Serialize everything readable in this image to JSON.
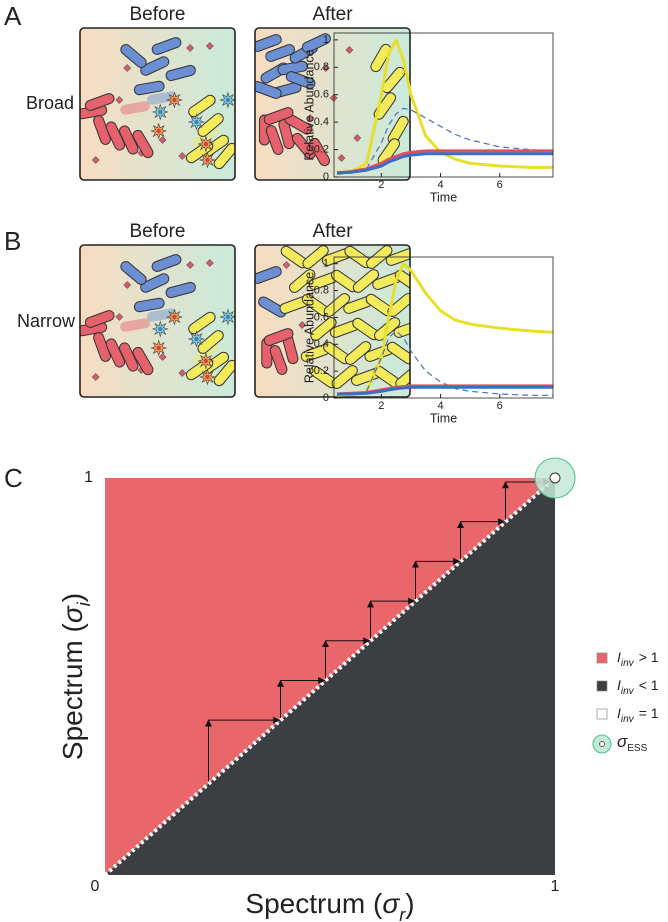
{
  "panels": [
    {
      "label": "A",
      "row_label": "Broad",
      "before": "Before",
      "after": "After"
    },
    {
      "label": "B",
      "row_label": "Narrow",
      "before": "Before",
      "after": "After"
    },
    {
      "label": "C"
    }
  ],
  "chart_data": [
    {
      "type": "line",
      "xlabel": "Time",
      "ylabel": "Relative Abundance",
      "x": [
        0.5,
        1,
        1.5,
        2,
        2.25,
        2.5,
        2.75,
        3,
        3.5,
        4,
        4.5,
        5,
        6,
        7,
        7.8
      ],
      "xlim": [
        0.4,
        7.8
      ],
      "ylim": [
        0,
        1.05
      ],
      "xticks": [
        2,
        4,
        6
      ],
      "yticks": [
        0,
        0.2,
        0.4,
        0.6,
        0.8,
        1
      ],
      "series": [
        {
          "color": "#e8df2a",
          "values": [
            0.03,
            0.04,
            0.1,
            0.6,
            0.9,
            1.0,
            0.85,
            0.6,
            0.3,
            0.18,
            0.13,
            0.1,
            0.08,
            0.07,
            0.07
          ]
        },
        {
          "color": "#4a6fc4",
          "dashed": true,
          "values": [
            0.02,
            0.03,
            0.06,
            0.25,
            0.38,
            0.46,
            0.5,
            0.49,
            0.43,
            0.37,
            0.31,
            0.27,
            0.22,
            0.2,
            0.19
          ]
        },
        {
          "color": "#e0505a",
          "values": [
            0.03,
            0.04,
            0.06,
            0.1,
            0.13,
            0.15,
            0.17,
            0.18,
            0.19,
            0.19,
            0.19,
            0.19,
            0.19,
            0.19,
            0.19
          ]
        },
        {
          "color": "#3a6cc8",
          "values": [
            0.03,
            0.035,
            0.05,
            0.08,
            0.11,
            0.13,
            0.15,
            0.16,
            0.17,
            0.17,
            0.17,
            0.17,
            0.17,
            0.17,
            0.17
          ]
        }
      ]
    },
    {
      "type": "line",
      "xlabel": "Time",
      "ylabel": "Relative Abundance",
      "x": [
        0.5,
        1,
        1.5,
        2,
        2.25,
        2.5,
        2.75,
        3,
        3.5,
        4,
        4.5,
        5,
        6,
        7,
        7.8
      ],
      "xlim": [
        0.4,
        7.8
      ],
      "ylim": [
        0,
        1.05
      ],
      "xticks": [
        2,
        4,
        6
      ],
      "yticks": [
        0,
        0.2,
        0.4,
        0.6,
        0.8,
        1
      ],
      "series": [
        {
          "color": "#e8df2a",
          "values": [
            0.02,
            0.03,
            0.05,
            0.3,
            0.6,
            0.88,
            1.0,
            0.95,
            0.78,
            0.65,
            0.58,
            0.55,
            0.52,
            0.5,
            0.49
          ]
        },
        {
          "color": "#4a6fc4",
          "dashed": true,
          "values": [
            0.02,
            0.03,
            0.05,
            0.3,
            0.45,
            0.5,
            0.45,
            0.35,
            0.2,
            0.12,
            0.07,
            0.05,
            0.03,
            0.02,
            0.02
          ]
        },
        {
          "color": "#e0505a",
          "values": [
            0.03,
            0.035,
            0.04,
            0.06,
            0.07,
            0.08,
            0.085,
            0.09,
            0.09,
            0.09,
            0.09,
            0.09,
            0.09,
            0.09,
            0.09
          ]
        },
        {
          "color": "#3a6cc8",
          "values": [
            0.03,
            0.03,
            0.035,
            0.05,
            0.06,
            0.07,
            0.075,
            0.08,
            0.08,
            0.08,
            0.08,
            0.08,
            0.08,
            0.08,
            0.08
          ]
        }
      ]
    },
    {
      "type": "invasion",
      "xlabel": {
        "text": "Spectrum (",
        "symbol": "σ",
        "sub": "r",
        "close": ")"
      },
      "ylabel": {
        "text": "Spectrum (",
        "symbol": "σ",
        "sub": "i",
        "close": ")"
      },
      "xlim": [
        0,
        1
      ],
      "ylim": [
        0,
        1
      ],
      "xticks": [
        0,
        1
      ],
      "yticks": [
        1
      ],
      "steps": [
        0.23,
        0.39,
        0.49,
        0.59,
        0.69,
        0.79,
        0.89,
        0.99
      ],
      "ess": [
        1,
        1
      ],
      "legend": "right",
      "regions": [
        {
          "symbol": "I",
          "sub": "inv",
          "relation": "> 1",
          "color": "#e9666b"
        },
        {
          "symbol": "I",
          "sub": "inv",
          "relation": "< 1",
          "color": "#3b3f41"
        },
        {
          "symbol": "I",
          "sub": "inv",
          "relation": "= 1",
          "color": "#ffffff"
        }
      ],
      "ess_label": {
        "symbol": "σ",
        "sub": "ESS"
      },
      "ess_color": "#c4e9d8"
    }
  ]
}
